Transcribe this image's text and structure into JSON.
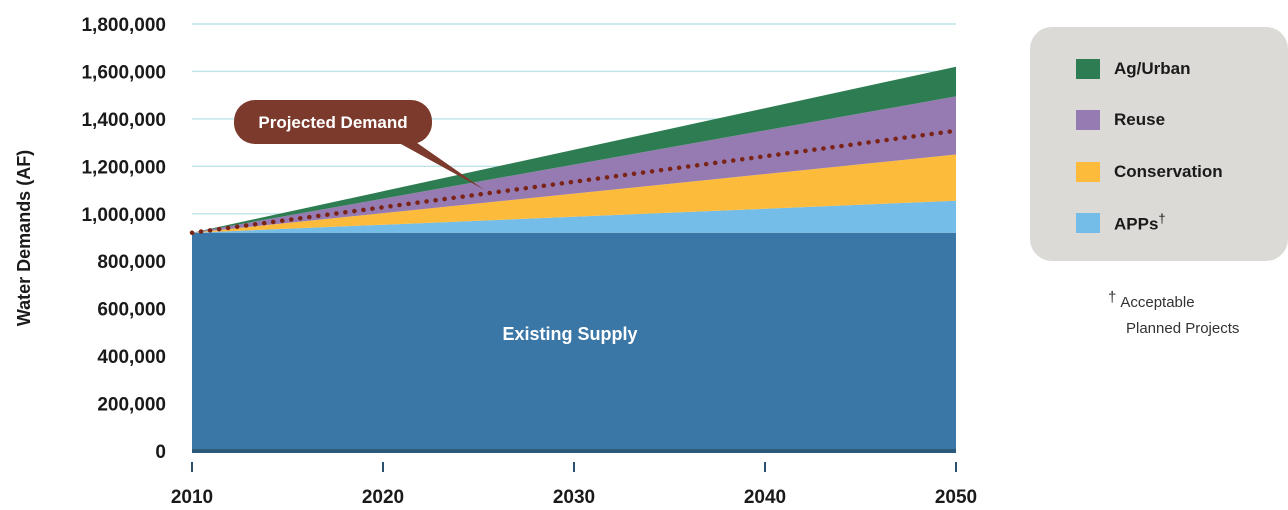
{
  "chart_data": {
    "type": "area",
    "stacked": true,
    "title": "",
    "ylabel": "Water Demands (AF)",
    "xlabel": "",
    "x": [
      2010,
      2050
    ],
    "xticks": [
      "2010",
      "2020",
      "2030",
      "2040",
      "2050"
    ],
    "ylim": [
      0,
      1800000
    ],
    "yticks": [
      "0",
      "200,000",
      "400,000",
      "600,000",
      "800,000",
      "1,000,000",
      "1,200,000",
      "1,400,000",
      "1,600,000",
      "1,800,000"
    ],
    "grid": true,
    "series": [
      {
        "name": "Existing Supply",
        "values": [
          920000,
          920000
        ],
        "color": "#3a76a6"
      },
      {
        "name": "APPs",
        "values": [
          0,
          135000
        ],
        "color": "#74bde8"
      },
      {
        "name": "Conservation",
        "values": [
          0,
          195000
        ],
        "color": "#fdbb3b"
      },
      {
        "name": "Reuse",
        "values": [
          0,
          245000
        ],
        "color": "#967bb2"
      },
      {
        "name": "Ag/Urban",
        "values": [
          0,
          125000
        ],
        "color": "#2e7d52"
      }
    ],
    "projected_demand": {
      "name": "Projected Demand",
      "values": [
        920000,
        1350000
      ],
      "color": "#7a2418"
    },
    "annotations": {
      "inside_label": "Existing Supply",
      "callout": "Projected Demand"
    }
  },
  "legend": {
    "items": [
      {
        "label": "Ag/Urban",
        "color": "#2e7d52"
      },
      {
        "label": "Reuse",
        "color": "#967bb2"
      },
      {
        "label": "Conservation",
        "color": "#fdbb3b"
      },
      {
        "label": "APPs",
        "color": "#74bde8",
        "sup": "†"
      }
    ],
    "footnote_mark": "†",
    "footnote_line1": "Acceptable",
    "footnote_line2": "Planned Projects"
  }
}
